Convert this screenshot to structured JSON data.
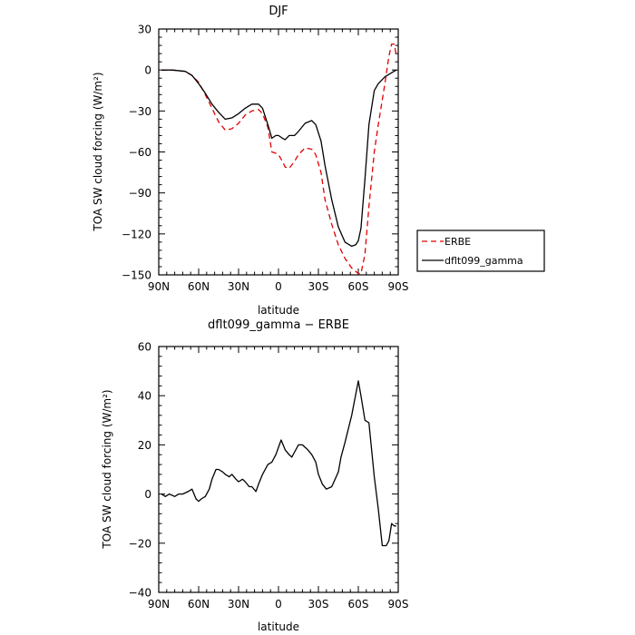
{
  "chart_data": [
    {
      "type": "line",
      "title": "DJF",
      "xlabel": "latitude",
      "ylabel": "TOA SW cloud forcing (W/m²)",
      "xlim": [
        90,
        -90
      ],
      "ylim": [
        -150,
        30
      ],
      "x_ticks": [
        90,
        60,
        30,
        0,
        -30,
        -60,
        -90
      ],
      "x_tick_labels": [
        "90N",
        "60N",
        "30N",
        "0",
        "30S",
        "60S",
        "90S"
      ],
      "y_ticks": [
        30,
        0,
        -30,
        -60,
        -90,
        -120,
        -150
      ],
      "y_tick_labels": [
        "30",
        "0",
        "−30",
        "−60",
        "−90",
        "−120",
        "−150"
      ],
      "legend_position": "right",
      "series": [
        {
          "name": "ERBE",
          "color": "#e00000",
          "dash": "dashed",
          "x": [
            88,
            80,
            70,
            65,
            60,
            55,
            50,
            45,
            40,
            35,
            30,
            25,
            20,
            15,
            12,
            8,
            5,
            2,
            0,
            -3,
            -5,
            -8,
            -12,
            -15,
            -20,
            -25,
            -28,
            -32,
            -35,
            -40,
            -45,
            -50,
            -55,
            -60,
            -62,
            -65,
            -68,
            -72,
            -75,
            -80,
            -83,
            -85,
            -87,
            -88.5
          ],
          "y": [
            0,
            0,
            -1,
            -4,
            -9,
            -18,
            -28,
            -38,
            -44,
            -43,
            -39,
            -33,
            -30,
            -29,
            -32,
            -42,
            -60,
            -61,
            -62,
            -67,
            -71,
            -72,
            -67,
            -62,
            -57,
            -58,
            -62,
            -75,
            -95,
            -113,
            -128,
            -138,
            -145,
            -149,
            -149,
            -135,
            -100,
            -60,
            -40,
            -10,
            10,
            19,
            19,
            11
          ]
        },
        {
          "name": "dflt099_gamma",
          "color": "#000000",
          "dash": "solid",
          "x": [
            88,
            80,
            70,
            65,
            60,
            55,
            50,
            45,
            40,
            35,
            30,
            25,
            20,
            15,
            12,
            8,
            5,
            2,
            0,
            -3,
            -5,
            -8,
            -12,
            -15,
            -20,
            -25,
            -28,
            -32,
            -35,
            -40,
            -45,
            -50,
            -55,
            -58,
            -60,
            -62,
            -65,
            -68,
            -72,
            -75,
            -80,
            -85,
            -88.5
          ],
          "y": [
            0,
            0,
            -1,
            -4,
            -10,
            -17,
            -25,
            -31,
            -36,
            -35,
            -32,
            -28,
            -25,
            -25,
            -28,
            -40,
            -50,
            -48,
            -48,
            -50,
            -51,
            -48,
            -48,
            -45,
            -39,
            -37,
            -40,
            -52,
            -70,
            -95,
            -115,
            -126,
            -129,
            -128,
            -125,
            -116,
            -80,
            -40,
            -15,
            -10,
            -5,
            -2,
            0
          ]
        }
      ]
    },
    {
      "type": "line",
      "title": "dflt099_gamma − ERBE",
      "xlabel": "latitude",
      "ylabel": "TOA SW cloud forcing (W/m²)",
      "xlim": [
        90,
        -90
      ],
      "ylim": [
        -40,
        60
      ],
      "x_ticks": [
        90,
        60,
        30,
        0,
        -30,
        -60,
        -90
      ],
      "x_tick_labels": [
        "90N",
        "60N",
        "30N",
        "0",
        "30S",
        "60S",
        "90S"
      ],
      "y_ticks": [
        60,
        40,
        20,
        0,
        -20,
        -40
      ],
      "y_tick_labels": [
        "60",
        "40",
        "20",
        "0",
        "−20",
        "−40"
      ],
      "series": [
        {
          "color": "#000000",
          "dash": "solid",
          "x": [
            88,
            85,
            82,
            78,
            75,
            72,
            68,
            65,
            62,
            60,
            58,
            55,
            52,
            50,
            47,
            45,
            42,
            40,
            37,
            35,
            32,
            30,
            27,
            25,
            22,
            20,
            17,
            15,
            12,
            8,
            5,
            2,
            0,
            -2,
            -5,
            -8,
            -10,
            -12,
            -15,
            -18,
            -20,
            -22,
            -25,
            -28,
            -30,
            -33,
            -36,
            -40,
            -45,
            -47,
            -50,
            -55,
            -60,
            -62,
            -65,
            -68,
            -72,
            -75,
            -78,
            -81,
            -83,
            -85,
            -87,
            -88.5
          ],
          "y": [
            0,
            -1,
            0,
            -1,
            0,
            0,
            1,
            2,
            -2,
            -3,
            -2,
            -1,
            2,
            6,
            10,
            10,
            9,
            8,
            7,
            8,
            6,
            5,
            6,
            5,
            3,
            3,
            1,
            4,
            8,
            12,
            13,
            16,
            19,
            22,
            18,
            16,
            15,
            17,
            20,
            20,
            19,
            18,
            16,
            13,
            8,
            4,
            2,
            3,
            9,
            15,
            21,
            32,
            46,
            40,
            30,
            29,
            7,
            -6,
            -21,
            -21,
            -19,
            -12,
            -13,
            -13
          ]
        }
      ]
    }
  ],
  "legend": {
    "entries": [
      "ERBE",
      "dflt099_gamma"
    ]
  }
}
